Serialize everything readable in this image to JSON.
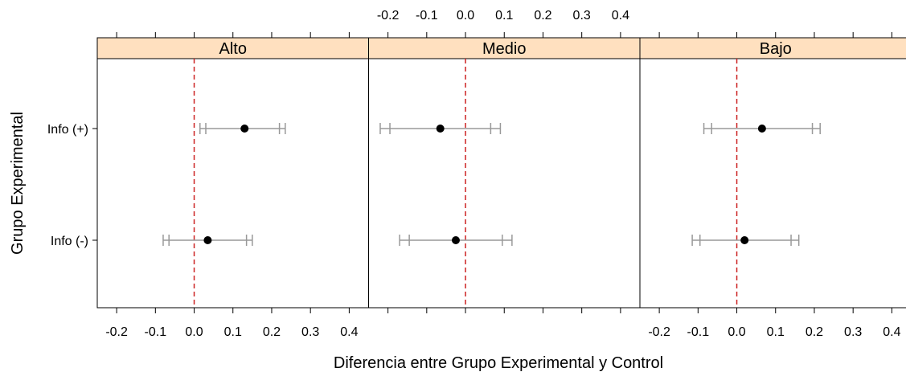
{
  "chart_data": {
    "type": "dotplot-errorbar",
    "xlabel": "Diferencia entre Grupo Experimental y Control",
    "ylabel": "Grupo Experimental",
    "xlim": [
      -0.25,
      0.45
    ],
    "x_ticks": [
      -0.2,
      -0.1,
      0.0,
      0.1,
      0.2,
      0.3,
      0.4
    ],
    "x_tick_labels": [
      "-0.2",
      "-0.1",
      "0.0",
      "0.1",
      "0.2",
      "0.3",
      "0.4"
    ],
    "reference_line": 0.0,
    "categories": [
      "Info (+)",
      "Info (-)"
    ],
    "colors": {
      "strip": "#ffe0bf",
      "point": "#000000",
      "interval": "#999999",
      "reference": "#cc2222"
    },
    "panels": [
      {
        "name": "Alto",
        "points": [
          {
            "group": "Info (+)",
            "estimate": 0.13,
            "ci_inner": [
              0.03,
              0.22
            ],
            "ci_outer": [
              0.015,
              0.235
            ]
          },
          {
            "group": "Info (-)",
            "estimate": 0.035,
            "ci_inner": [
              -0.065,
              0.135
            ],
            "ci_outer": [
              -0.08,
              0.15
            ]
          }
        ]
      },
      {
        "name": "Medio",
        "points": [
          {
            "group": "Info (+)",
            "estimate": -0.065,
            "ci_inner": [
              -0.195,
              0.065
            ],
            "ci_outer": [
              -0.22,
              0.09
            ]
          },
          {
            "group": "Info (-)",
            "estimate": -0.025,
            "ci_inner": [
              -0.145,
              0.095
            ],
            "ci_outer": [
              -0.17,
              0.12
            ]
          }
        ]
      },
      {
        "name": "Bajo",
        "points": [
          {
            "group": "Info (+)",
            "estimate": 0.065,
            "ci_inner": [
              -0.065,
              0.195
            ],
            "ci_outer": [
              -0.085,
              0.215
            ]
          },
          {
            "group": "Info (-)",
            "estimate": 0.02,
            "ci_inner": [
              -0.095,
              0.14
            ],
            "ci_outer": [
              -0.115,
              0.16
            ]
          }
        ]
      }
    ]
  }
}
